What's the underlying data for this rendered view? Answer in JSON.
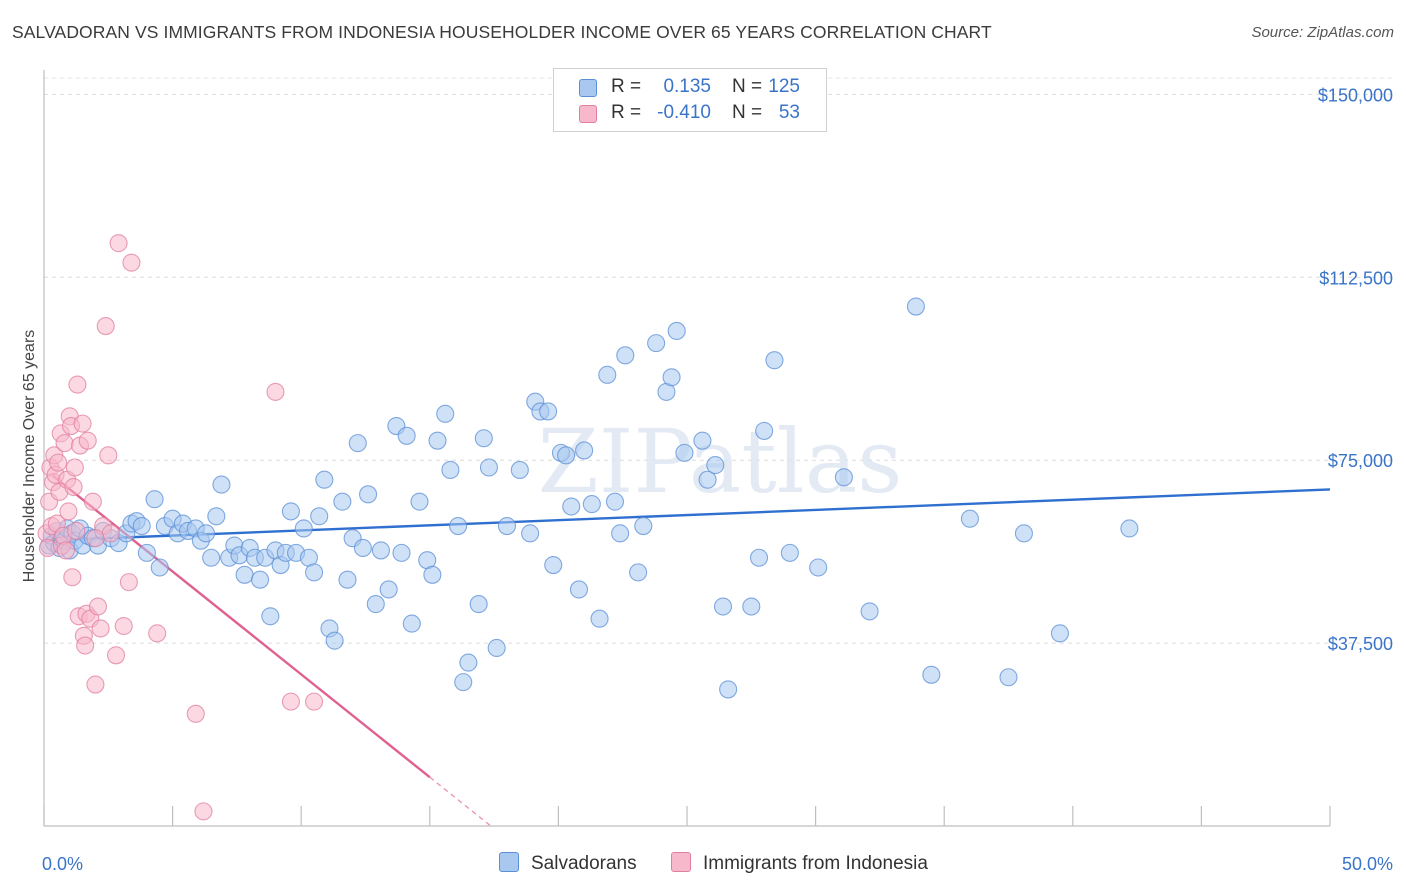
{
  "title": "SALVADORAN VS IMMIGRANTS FROM INDONESIA HOUSEHOLDER INCOME OVER 65 YEARS CORRELATION CHART",
  "source": "Source: ZipAtlas.com",
  "watermark": "ZIPatlas",
  "legend": {
    "rows": [
      {
        "r_label": "R =",
        "r_value": "0.135",
        "n_label": "N =",
        "n_value": "125",
        "color": "#a8c8f0",
        "border": "#5b8fd6"
      },
      {
        "r_label": "R =",
        "r_value": "-0.410",
        "n_label": "N =",
        "n_value": "53",
        "color": "#f7b8cb",
        "border": "#e07fa0"
      }
    ]
  },
  "bottom_legend": [
    {
      "label": "Salvadorans",
      "color": "#a8c8f0",
      "border": "#5b8fd6"
    },
    {
      "label": "Immigrants from Indonesia",
      "color": "#f7b8cb",
      "border": "#e07fa0"
    }
  ],
  "chart_data": {
    "type": "scatter",
    "ylabel": "Householder Income Over 65 years",
    "xlim": [
      0,
      50
    ],
    "ylim": [
      0,
      155000
    ],
    "x_tick_labels": [
      "0.0%",
      "50.0%"
    ],
    "y_ticks": [
      37500,
      75000,
      112500,
      150000
    ],
    "y_tick_labels": [
      "$37,500",
      "$75,000",
      "$112,500",
      "$150,000"
    ],
    "grid": true,
    "series": [
      {
        "name": "Salvadorans",
        "color": "#5b8fd6",
        "fill": "#a8c8f0",
        "trend": {
          "x": [
            0,
            50
          ],
          "y": [
            58500,
            69000
          ]
        },
        "points": [
          [
            0.2,
            57500
          ],
          [
            0.3,
            59500
          ],
          [
            0.4,
            58000
          ],
          [
            0.5,
            60500
          ],
          [
            0.6,
            57000
          ],
          [
            0.7,
            59000
          ],
          [
            0.8,
            58500
          ],
          [
            0.9,
            61000
          ],
          [
            1.0,
            56500
          ],
          [
            1.1,
            60000
          ],
          [
            1.2,
            58500
          ],
          [
            1.4,
            61000
          ],
          [
            1.5,
            57500
          ],
          [
            1.7,
            59500
          ],
          [
            1.9,
            59000
          ],
          [
            2.1,
            57500
          ],
          [
            2.3,
            60500
          ],
          [
            2.6,
            59000
          ],
          [
            2.9,
            58000
          ],
          [
            3.2,
            60000
          ],
          [
            3.4,
            62000
          ],
          [
            3.6,
            62500
          ],
          [
            3.8,
            61500
          ],
          [
            4.0,
            56000
          ],
          [
            4.3,
            67000
          ],
          [
            4.5,
            53000
          ],
          [
            4.7,
            61500
          ],
          [
            5.0,
            63000
          ],
          [
            5.2,
            60000
          ],
          [
            5.4,
            62000
          ],
          [
            5.6,
            60500
          ],
          [
            5.9,
            61000
          ],
          [
            6.1,
            58500
          ],
          [
            6.3,
            60000
          ],
          [
            6.5,
            55000
          ],
          [
            6.7,
            63500
          ],
          [
            6.9,
            70000
          ],
          [
            7.2,
            55000
          ],
          [
            7.4,
            57500
          ],
          [
            7.6,
            55500
          ],
          [
            7.8,
            51500
          ],
          [
            8.0,
            57000
          ],
          [
            8.2,
            55000
          ],
          [
            8.4,
            50500
          ],
          [
            8.6,
            55000
          ],
          [
            8.8,
            43000
          ],
          [
            9.0,
            56500
          ],
          [
            9.2,
            53500
          ],
          [
            9.4,
            56000
          ],
          [
            9.6,
            64500
          ],
          [
            9.8,
            56000
          ],
          [
            10.1,
            61000
          ],
          [
            10.3,
            55000
          ],
          [
            10.5,
            52000
          ],
          [
            10.7,
            63500
          ],
          [
            10.9,
            71000
          ],
          [
            11.1,
            40500
          ],
          [
            11.3,
            38000
          ],
          [
            11.6,
            66500
          ],
          [
            11.8,
            50500
          ],
          [
            12.0,
            59000
          ],
          [
            12.2,
            78500
          ],
          [
            12.4,
            57000
          ],
          [
            12.6,
            68000
          ],
          [
            12.9,
            45500
          ],
          [
            13.1,
            56500
          ],
          [
            13.4,
            48500
          ],
          [
            13.7,
            82000
          ],
          [
            13.9,
            56000
          ],
          [
            14.1,
            80000
          ],
          [
            14.3,
            41500
          ],
          [
            14.6,
            66500
          ],
          [
            14.9,
            54500
          ],
          [
            15.1,
            51500
          ],
          [
            15.3,
            79000
          ],
          [
            15.6,
            84500
          ],
          [
            15.8,
            73000
          ],
          [
            16.1,
            61500
          ],
          [
            16.3,
            29500
          ],
          [
            16.5,
            33500
          ],
          [
            16.9,
            45500
          ],
          [
            17.1,
            79500
          ],
          [
            17.3,
            73500
          ],
          [
            17.6,
            36500
          ],
          [
            18.0,
            61500
          ],
          [
            18.5,
            73000
          ],
          [
            18.9,
            60000
          ],
          [
            19.1,
            87000
          ],
          [
            19.3,
            85000
          ],
          [
            19.6,
            85000
          ],
          [
            19.8,
            53500
          ],
          [
            20.1,
            76500
          ],
          [
            20.3,
            76000
          ],
          [
            20.5,
            65500
          ],
          [
            20.8,
            48500
          ],
          [
            21.0,
            77000
          ],
          [
            21.3,
            66000
          ],
          [
            21.6,
            42500
          ],
          [
            21.9,
            92500
          ],
          [
            22.2,
            66500
          ],
          [
            22.4,
            60000
          ],
          [
            22.6,
            96500
          ],
          [
            23.1,
            52000
          ],
          [
            23.3,
            61500
          ],
          [
            23.8,
            99000
          ],
          [
            24.2,
            89000
          ],
          [
            24.4,
            92000
          ],
          [
            24.6,
            101500
          ],
          [
            24.9,
            76500
          ],
          [
            25.6,
            79000
          ],
          [
            25.8,
            71000
          ],
          [
            26.1,
            74000
          ],
          [
            26.4,
            45000
          ],
          [
            26.6,
            28000
          ],
          [
            27.5,
            45000
          ],
          [
            27.8,
            55000
          ],
          [
            28.0,
            81000
          ],
          [
            28.4,
            95500
          ],
          [
            29.0,
            56000
          ],
          [
            30.1,
            53000
          ],
          [
            31.1,
            71500
          ],
          [
            32.1,
            44000
          ],
          [
            33.9,
            106500
          ],
          [
            34.5,
            31000
          ],
          [
            36.0,
            63000
          ],
          [
            37.5,
            30500
          ],
          [
            38.1,
            60000
          ],
          [
            39.5,
            39500
          ],
          [
            42.2,
            61000
          ]
        ]
      },
      {
        "name": "Immigrants from Indonesia",
        "color": "#e07fa0",
        "fill": "#f7b8cb",
        "trend": {
          "x": [
            0.3,
            15.0
          ],
          "y": [
            72000,
            10000
          ]
        },
        "points": [
          [
            0.1,
            60000
          ],
          [
            0.15,
            57000
          ],
          [
            0.2,
            66500
          ],
          [
            0.25,
            73500
          ],
          [
            0.3,
            61500
          ],
          [
            0.35,
            70500
          ],
          [
            0.4,
            76000
          ],
          [
            0.45,
            72000
          ],
          [
            0.5,
            62000
          ],
          [
            0.55,
            74500
          ],
          [
            0.6,
            68500
          ],
          [
            0.65,
            80500
          ],
          [
            0.7,
            57500
          ],
          [
            0.75,
            59500
          ],
          [
            0.8,
            78500
          ],
          [
            0.85,
            56500
          ],
          [
            0.9,
            71000
          ],
          [
            0.95,
            64500
          ],
          [
            1.0,
            84000
          ],
          [
            1.05,
            82000
          ],
          [
            1.1,
            51000
          ],
          [
            1.15,
            69500
          ],
          [
            1.2,
            73500
          ],
          [
            1.25,
            60500
          ],
          [
            1.3,
            90500
          ],
          [
            1.35,
            43000
          ],
          [
            1.4,
            78000
          ],
          [
            1.5,
            82500
          ],
          [
            1.55,
            39000
          ],
          [
            1.6,
            37000
          ],
          [
            1.65,
            43500
          ],
          [
            1.7,
            79000
          ],
          [
            1.8,
            42500
          ],
          [
            1.9,
            66500
          ],
          [
            2.0,
            29000
          ],
          [
            2.1,
            45000
          ],
          [
            2.2,
            40500
          ],
          [
            2.3,
            61500
          ],
          [
            2.4,
            102500
          ],
          [
            2.5,
            76000
          ],
          [
            2.6,
            60000
          ],
          [
            2.8,
            35000
          ],
          [
            2.9,
            119500
          ],
          [
            3.1,
            41000
          ],
          [
            3.3,
            50000
          ],
          [
            3.4,
            115500
          ],
          [
            4.4,
            39500
          ],
          [
            5.9,
            23000
          ],
          [
            6.2,
            3000
          ],
          [
            9.0,
            89000
          ],
          [
            9.6,
            25500
          ],
          [
            10.5,
            25500
          ],
          [
            2.0,
            59000
          ]
        ]
      }
    ]
  }
}
